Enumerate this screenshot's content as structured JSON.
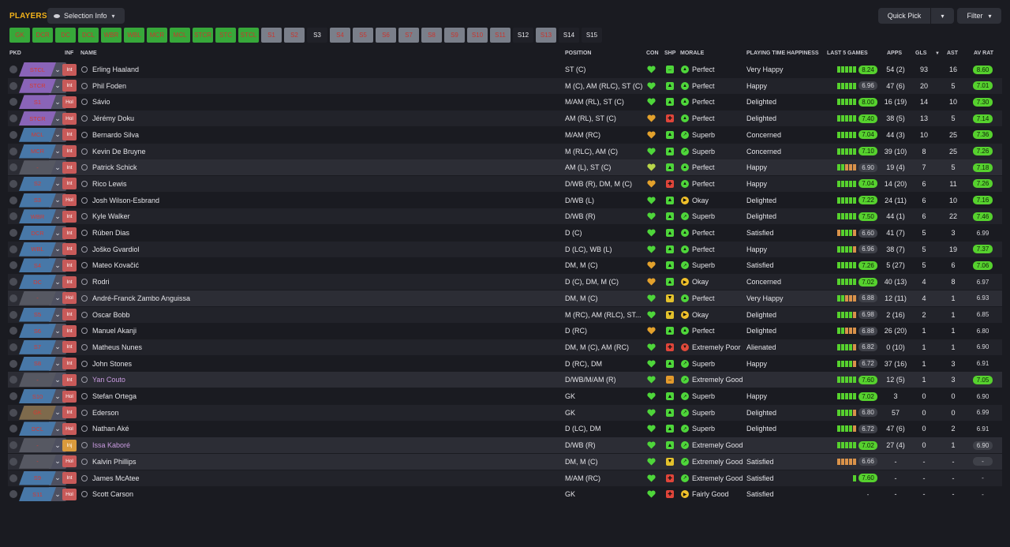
{
  "header": {
    "title": "PLAYERS",
    "selection_info": "Selection Info",
    "quick_pick": "Quick Pick",
    "filter": "Filter"
  },
  "tactics": [
    {
      "label": "GK",
      "style": "g"
    },
    {
      "label": "DCR",
      "style": "g"
    },
    {
      "label": "DC",
      "style": "g"
    },
    {
      "label": "DCL",
      "style": "g"
    },
    {
      "label": "WBR",
      "style": "g"
    },
    {
      "label": "WBL",
      "style": "g"
    },
    {
      "label": "MCR",
      "style": "g"
    },
    {
      "label": "MCL",
      "style": "g"
    },
    {
      "label": "STCR",
      "style": "g"
    },
    {
      "label": "STC",
      "style": "g"
    },
    {
      "label": "STCL",
      "style": "g"
    },
    {
      "label": "S1",
      "style": "s"
    },
    {
      "label": "S2",
      "style": "s"
    },
    {
      "label": "S3",
      "style": "d"
    },
    {
      "label": "S4",
      "style": "s"
    },
    {
      "label": "S5",
      "style": "s"
    },
    {
      "label": "S6",
      "style": "s"
    },
    {
      "label": "S7",
      "style": "s"
    },
    {
      "label": "S8",
      "style": "s"
    },
    {
      "label": "S9",
      "style": "s"
    },
    {
      "label": "S10",
      "style": "s"
    },
    {
      "label": "S11",
      "style": "s"
    },
    {
      "label": "S12",
      "style": "d"
    },
    {
      "label": "S13",
      "style": "s"
    },
    {
      "label": "S14",
      "style": "d"
    },
    {
      "label": "S15",
      "style": "d"
    }
  ],
  "columns": {
    "pkd": "PKD",
    "inf": "INF",
    "name": "NAME",
    "position": "POSITION",
    "con": "CON",
    "shp": "SHP",
    "morale": "MORALE",
    "pth": "PLAYING TIME HAPPINESS",
    "last5": "LAST 5 GAMES",
    "apps": "APPS",
    "gls": "GLS",
    "ast": "AST",
    "avrat": "AV RAT"
  },
  "colors": {
    "accent": "#f2b21a",
    "green": "#56d12e",
    "red_text": "#d63a32",
    "purple_pos": "#8a64b8",
    "blue_pos": "#4878a8",
    "grey_pos": "#565862",
    "brown_pos": "#7e6a4c"
  },
  "players": [
    {
      "pkd": "STCL",
      "pc": "p",
      "inf": "Int",
      "ic": "red",
      "name": "Erling Haaland",
      "pos": "ST (C)",
      "con": "g",
      "shp": "-",
      "sc": "g",
      "mi": "up",
      "mc": "g",
      "morale": "Perfect",
      "pth": "Very Happy",
      "b": "ggggg",
      "last": "8.24",
      "lg": true,
      "apps": "54 (2)",
      "gls": "93",
      "ast": "16",
      "av": "8.60",
      "ac": "g",
      "rs": "n"
    },
    {
      "pkd": "STCR",
      "pc": "p",
      "inf": "Int",
      "ic": "red",
      "name": "Phil Foden",
      "pos": "M (C), AM (RLC), ST (C)",
      "con": "g",
      "shp": "up",
      "sc": "g",
      "mi": "up",
      "mc": "g",
      "morale": "Perfect",
      "pth": "Happy",
      "b": "ggggg",
      "last": "6.96",
      "lg": false,
      "apps": "47 (6)",
      "gls": "20",
      "ast": "5",
      "av": "7.01",
      "ac": "g",
      "rs": "n"
    },
    {
      "pkd": "S1",
      "pc": "p",
      "inf": "Hol",
      "ic": "red",
      "name": "Sávio",
      "pos": "M/AM (RL), ST (C)",
      "con": "g",
      "shp": "up",
      "sc": "g",
      "mi": "up",
      "mc": "g",
      "morale": "Perfect",
      "pth": "Delighted",
      "b": "ggggg",
      "last": "8.00",
      "lg": true,
      "apps": "16 (19)",
      "gls": "14",
      "ast": "10",
      "av": "7.30",
      "ac": "g",
      "rs": "n"
    },
    {
      "pkd": "STCR",
      "pc": "p",
      "inf": "Hol",
      "ic": "red",
      "name": "Jérémy Doku",
      "pos": "AM (RL), ST (C)",
      "con": "o",
      "shp": "dn",
      "sc": "r",
      "mi": "up",
      "mc": "g",
      "morale": "Perfect",
      "pth": "Delighted",
      "b": "ggggg",
      "last": "7.40",
      "lg": true,
      "apps": "38 (5)",
      "gls": "13",
      "ast": "5",
      "av": "7.14",
      "ac": "g",
      "rs": "n"
    },
    {
      "pkd": "MCL",
      "pc": "b",
      "inf": "Int",
      "ic": "red",
      "name": "Bernardo Silva",
      "pos": "M/AM (RC)",
      "con": "o",
      "shp": "up",
      "sc": "g",
      "mi": "ur",
      "mc": "g",
      "morale": "Superb",
      "pth": "Concerned",
      "b": "ggggg",
      "last": "7.04",
      "lg": true,
      "apps": "44 (3)",
      "gls": "10",
      "ast": "25",
      "av": "7.36",
      "ac": "g",
      "rs": "n"
    },
    {
      "pkd": "MCR",
      "pc": "b",
      "inf": "Int",
      "ic": "red",
      "name": "Kevin De Bruyne",
      "pos": "M (RLC), AM (C)",
      "con": "g",
      "shp": "up",
      "sc": "g",
      "mi": "ur",
      "mc": "g",
      "morale": "Superb",
      "pth": "Concerned",
      "b": "ggggg",
      "last": "7.10",
      "lg": true,
      "apps": "39 (10)",
      "gls": "8",
      "ast": "25",
      "av": "7.26",
      "ac": "g",
      "rs": "n"
    },
    {
      "pkd": "-",
      "pc": "e",
      "inf": "Int",
      "ic": "red",
      "name": "Patrick Schick",
      "pos": "AM (L), ST (C)",
      "con": "y",
      "shp": "up",
      "sc": "g",
      "mi": "up",
      "mc": "g",
      "morale": "Perfect",
      "pth": "Happy",
      "b": "ggooo",
      "last": "6.90",
      "lg": false,
      "apps": "19 (4)",
      "gls": "7",
      "ast": "5",
      "av": "7.18",
      "ac": "g",
      "rs": "h"
    },
    {
      "pkd": "S2",
      "pc": "b",
      "inf": "Int",
      "ic": "red",
      "name": "Rico Lewis",
      "pos": "D/WB (R), DM, M (C)",
      "con": "o",
      "shp": "dn",
      "sc": "r",
      "mi": "up",
      "mc": "g",
      "morale": "Perfect",
      "pth": "Happy",
      "b": "ggggg",
      "last": "7.04",
      "lg": true,
      "apps": "14 (20)",
      "gls": "6",
      "ast": "11",
      "av": "7.26",
      "ac": "g",
      "rs": "n"
    },
    {
      "pkd": "S3",
      "pc": "b",
      "inf": "Hol",
      "ic": "red",
      "name": "Josh Wilson-Esbrand",
      "pos": "D/WB (L)",
      "con": "g",
      "shp": "up",
      "sc": "g",
      "mi": "rt",
      "mc": "y",
      "morale": "Okay",
      "pth": "Delighted",
      "b": "ggggg",
      "last": "7.22",
      "lg": true,
      "apps": "24 (11)",
      "gls": "6",
      "ast": "10",
      "av": "7.16",
      "ac": "g",
      "rs": "n"
    },
    {
      "pkd": "WBR",
      "pc": "b",
      "inf": "Int",
      "ic": "red",
      "name": "Kyle Walker",
      "pos": "D/WB (R)",
      "con": "g",
      "shp": "up",
      "sc": "g",
      "mi": "ur",
      "mc": "g",
      "morale": "Superb",
      "pth": "Delighted",
      "b": "ggggg",
      "last": "7.50",
      "lg": true,
      "apps": "44 (1)",
      "gls": "6",
      "ast": "22",
      "av": "7.46",
      "ac": "g",
      "rs": "n"
    },
    {
      "pkd": "DCR",
      "pc": "b",
      "inf": "Int",
      "ic": "red",
      "name": "Rúben Dias",
      "pos": "D (C)",
      "con": "g",
      "shp": "up",
      "sc": "g",
      "mi": "up",
      "mc": "g",
      "morale": "Perfect",
      "pth": "Satisfied",
      "b": "ogggo",
      "last": "6.60",
      "lg": false,
      "apps": "41 (7)",
      "gls": "5",
      "ast": "3",
      "av": "6.99",
      "ac": "n",
      "rs": "n"
    },
    {
      "pkd": "WBL",
      "pc": "b",
      "inf": "Int",
      "ic": "red",
      "name": "Joško Gvardiol",
      "pos": "D (LC), WB (L)",
      "con": "g",
      "shp": "up",
      "sc": "g",
      "mi": "up",
      "mc": "g",
      "morale": "Perfect",
      "pth": "Happy",
      "b": "ggggo",
      "last": "6.96",
      "lg": false,
      "apps": "38 (7)",
      "gls": "5",
      "ast": "19",
      "av": "7.37",
      "ac": "g",
      "rs": "n"
    },
    {
      "pkd": "S4",
      "pc": "b",
      "inf": "Int",
      "ic": "red",
      "name": "Mateo Kovačić",
      "pos": "DM, M (C)",
      "con": "o",
      "shp": "up",
      "sc": "g",
      "mi": "ur",
      "mc": "g",
      "morale": "Superb",
      "pth": "Satisfied",
      "b": "ggggg",
      "last": "7.26",
      "lg": true,
      "apps": "5 (27)",
      "gls": "5",
      "ast": "6",
      "av": "7.06",
      "ac": "g",
      "rs": "n"
    },
    {
      "pkd": "DC",
      "pc": "b",
      "inf": "Int",
      "ic": "red",
      "name": "Rodri",
      "pos": "D (C), DM, M (C)",
      "con": "o",
      "shp": "up",
      "sc": "g",
      "mi": "rt",
      "mc": "y",
      "morale": "Okay",
      "pth": "Concerned",
      "b": "ggggg",
      "last": "7.02",
      "lg": true,
      "apps": "40 (13)",
      "gls": "4",
      "ast": "8",
      "av": "6.97",
      "ac": "n",
      "rs": "n"
    },
    {
      "pkd": "-",
      "pc": "e",
      "inf": "Hol",
      "ic": "red",
      "name": "André-Franck Zambo Anguissa",
      "pos": "DM, M (C)",
      "con": "g",
      "shp": "dv",
      "sc": "y",
      "mi": "up",
      "mc": "g",
      "morale": "Perfect",
      "pth": "Very Happy",
      "b": "ggooo",
      "last": "6.88",
      "lg": false,
      "apps": "12 (11)",
      "gls": "4",
      "ast": "1",
      "av": "6.93",
      "ac": "n",
      "rs": "h"
    },
    {
      "pkd": "S5",
      "pc": "b",
      "inf": "Int",
      "ic": "red",
      "name": "Oscar Bobb",
      "pos": "M (RC), AM (RLC), ST...",
      "con": "g",
      "shp": "dv",
      "sc": "y",
      "mi": "rt",
      "mc": "y",
      "morale": "Okay",
      "pth": "Delighted",
      "b": "ggggo",
      "last": "6.98",
      "lg": false,
      "apps": "2 (16)",
      "gls": "2",
      "ast": "1",
      "av": "6.85",
      "ac": "n",
      "rs": "n"
    },
    {
      "pkd": "S6",
      "pc": "b",
      "inf": "Int",
      "ic": "red",
      "name": "Manuel Akanji",
      "pos": "D (RC)",
      "con": "o",
      "shp": "up",
      "sc": "g",
      "mi": "up",
      "mc": "g",
      "morale": "Perfect",
      "pth": "Delighted",
      "b": "ggooo",
      "last": "6.88",
      "lg": false,
      "apps": "26 (20)",
      "gls": "1",
      "ast": "1",
      "av": "6.80",
      "ac": "n",
      "rs": "n"
    },
    {
      "pkd": "S7",
      "pc": "b",
      "inf": "Int",
      "ic": "red",
      "name": "Matheus Nunes",
      "pos": "DM, M (C), AM (RC)",
      "con": "g",
      "shp": "dn",
      "sc": "r",
      "mi": "dn",
      "mc": "r",
      "morale": "Extremely Poor",
      "pth": "Alienated",
      "b": "ggggo",
      "last": "6.82",
      "lg": false,
      "apps": "0 (10)",
      "gls": "1",
      "ast": "1",
      "av": "6.90",
      "ac": "n",
      "rs": "n"
    },
    {
      "pkd": "S8",
      "pc": "b",
      "inf": "Int",
      "ic": "red",
      "name": "John Stones",
      "pos": "D (RC), DM",
      "con": "g",
      "shp": "up",
      "sc": "g",
      "mi": "ur",
      "mc": "g",
      "morale": "Superb",
      "pth": "Happy",
      "b": "ggggo",
      "last": "6.72",
      "lg": false,
      "apps": "37 (16)",
      "gls": "1",
      "ast": "3",
      "av": "6.91",
      "ac": "n",
      "rs": "n"
    },
    {
      "pkd": "-",
      "pc": "e",
      "inf": "Int",
      "ic": "red",
      "name": "Yan Couto",
      "pos": "D/WB/M/AM (R)",
      "con": "g",
      "shp": "-",
      "sc": "o",
      "mi": "ur",
      "mc": "g",
      "morale": "Extremely Good",
      "pth": "",
      "b": "ggggg",
      "last": "7.60",
      "lg": true,
      "apps": "12 (5)",
      "gls": "1",
      "ast": "3",
      "av": "7.05",
      "ac": "g",
      "rs": "h",
      "purple": true
    },
    {
      "pkd": "S10",
      "pc": "b",
      "inf": "Hol",
      "ic": "red",
      "name": "Stefan Ortega",
      "pos": "GK",
      "con": "g",
      "shp": "up",
      "sc": "g",
      "mi": "ur",
      "mc": "g",
      "morale": "Superb",
      "pth": "Happy",
      "b": "ggggg",
      "last": "7.02",
      "lg": true,
      "apps": "3",
      "gls": "0",
      "ast": "0",
      "av": "6.90",
      "ac": "n",
      "rs": "n"
    },
    {
      "pkd": "GK",
      "pc": "br",
      "inf": "Int",
      "ic": "red",
      "name": "Ederson",
      "pos": "GK",
      "con": "g",
      "shp": "up",
      "sc": "g",
      "mi": "ur",
      "mc": "g",
      "morale": "Superb",
      "pth": "Delighted",
      "b": "ggggo",
      "last": "6.80",
      "lg": false,
      "apps": "57",
      "gls": "0",
      "ast": "0",
      "av": "6.99",
      "ac": "n",
      "rs": "n"
    },
    {
      "pkd": "DCL",
      "pc": "b",
      "inf": "Hol",
      "ic": "red",
      "name": "Nathan Aké",
      "pos": "D (LC), DM",
      "con": "g",
      "shp": "up",
      "sc": "g",
      "mi": "ur",
      "mc": "g",
      "morale": "Superb",
      "pth": "Delighted",
      "b": "ggggo",
      "last": "6.72",
      "lg": false,
      "apps": "47 (6)",
      "gls": "0",
      "ast": "2",
      "av": "6.91",
      "ac": "n",
      "rs": "n"
    },
    {
      "pkd": "-",
      "pc": "e",
      "inf": "Inj",
      "ic": "org",
      "name": "Issa Kaboré",
      "pos": "D/WB (R)",
      "con": "g",
      "shp": "up",
      "sc": "g",
      "mi": "ur",
      "mc": "g",
      "morale": "Extremely Good",
      "pth": "",
      "b": "ggggg",
      "last": "7.02",
      "lg": true,
      "apps": "27 (4)",
      "gls": "0",
      "ast": "1",
      "av": "6.90",
      "ac": "d",
      "rs": "h",
      "purple": true
    },
    {
      "pkd": "-",
      "pc": "e",
      "inf": "Hol",
      "ic": "red",
      "name": "Kalvin Phillips",
      "pos": "DM, M (C)",
      "con": "g",
      "shp": "dv",
      "sc": "y",
      "mi": "ur",
      "mc": "g",
      "morale": "Extremely Good",
      "pth": "Satisfied",
      "b": "ooooo",
      "last": "6.66",
      "lg": false,
      "apps": "-",
      "gls": "-",
      "ast": "-",
      "av": "-",
      "ac": "d",
      "rs": "h"
    },
    {
      "pkd": "S9",
      "pc": "b",
      "inf": "Int",
      "ic": "red",
      "name": "James McAtee",
      "pos": "M/AM (RC)",
      "con": "g",
      "shp": "dn",
      "sc": "r",
      "mi": "ur",
      "mc": "g",
      "morale": "Extremely Good",
      "pth": "Satisfied",
      "b": "g",
      "last": "7.60",
      "lg": true,
      "apps": "-",
      "gls": "-",
      "ast": "-",
      "av": "-",
      "ac": "n",
      "rs": "n"
    },
    {
      "pkd": "S11",
      "pc": "b",
      "inf": "Hol",
      "ic": "red",
      "name": "Scott Carson",
      "pos": "GK",
      "con": "g",
      "shp": "dn",
      "sc": "r",
      "mi": "rt",
      "mc": "y",
      "morale": "Fairly Good",
      "pth": "Satisfied",
      "b": "",
      "last": "-",
      "lg": false,
      "apps": "-",
      "gls": "-",
      "ast": "-",
      "av": "-",
      "ac": "n",
      "rs": "n"
    }
  ]
}
